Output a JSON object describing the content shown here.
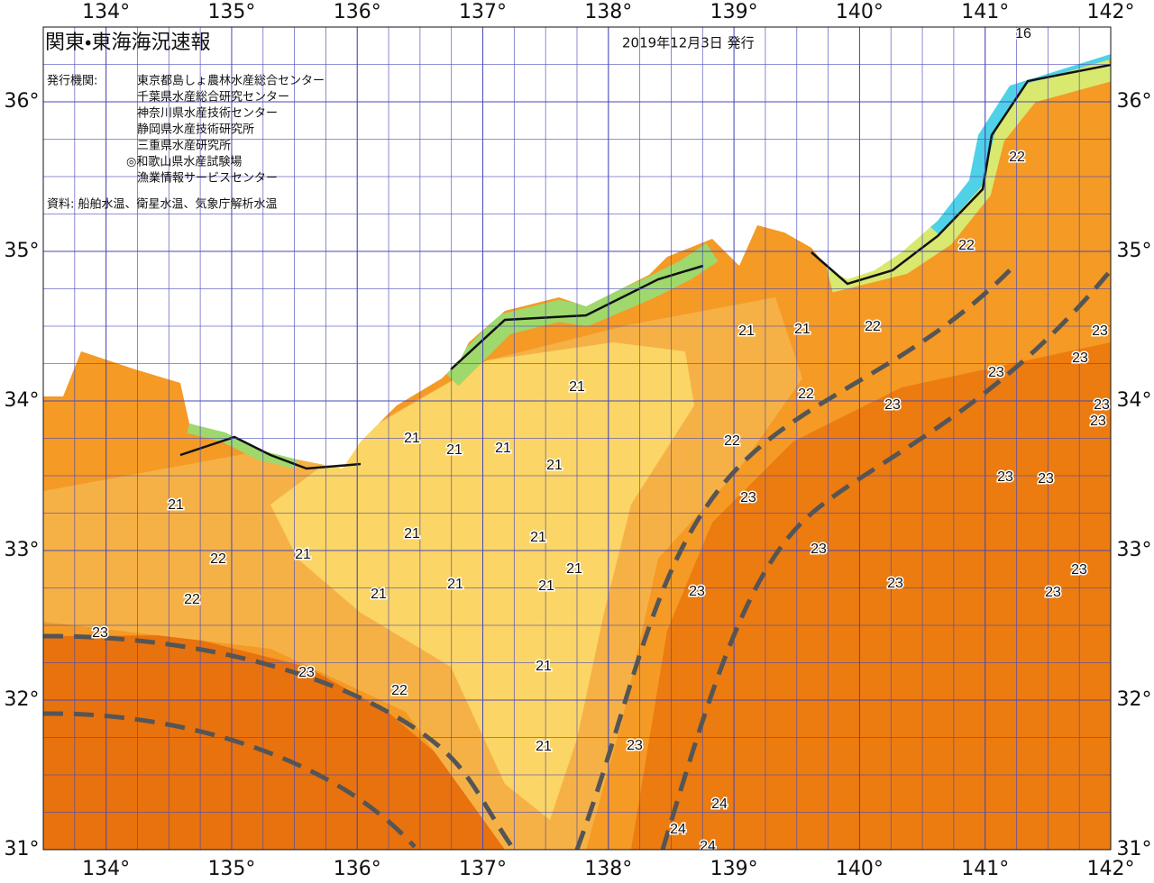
{
  "header": {
    "title": "関東・東海海況速報",
    "date": "2019年12月3日 発行",
    "issuers_label": "発行機関:",
    "issuers": [
      "東京都島しょ農林水産総合センター",
      "千葉県水産総合研究センター",
      "神奈川県水産技術センター",
      "静岡県水産技術研究所",
      "三重県水産研究所",
      "◎和歌山県水産試験場",
      "漁業情報サービスセンター"
    ],
    "sources": "資料: 船舶水温、衛星水温、気象庁解析水温"
  },
  "map": {
    "lon_range": [
      133.5,
      142
    ],
    "lat_range": [
      31,
      36.5
    ],
    "lon_ticks": [
      {
        "value": 134,
        "label": "134°"
      },
      {
        "value": 135,
        "label": "135°"
      },
      {
        "value": 136,
        "label": "136°"
      },
      {
        "value": 137,
        "label": "137°"
      },
      {
        "value": 138,
        "label": "138°"
      },
      {
        "value": 139,
        "label": "139°"
      },
      {
        "value": 140,
        "label": "140°"
      },
      {
        "value": 141,
        "label": "141°"
      },
      {
        "value": 142,
        "label": "142°"
      }
    ],
    "lat_ticks": [
      {
        "value": 31,
        "label": "31°"
      },
      {
        "value": 32,
        "label": "32°"
      },
      {
        "value": 33,
        "label": "33°"
      },
      {
        "value": 34,
        "label": "34°"
      },
      {
        "value": 35,
        "label": "35°"
      },
      {
        "value": 36,
        "label": "36°"
      }
    ],
    "isotherm_labels": [
      16,
      22,
      22,
      21,
      21,
      22,
      23,
      23,
      23,
      21,
      22,
      23,
      23,
      23,
      21,
      21,
      21,
      22,
      21,
      23,
      23,
      21,
      23,
      21,
      21,
      22,
      21,
      23,
      21,
      23,
      21,
      21,
      23,
      23,
      23,
      21,
      22,
      23,
      23,
      21,
      22,
      23,
      21,
      24,
      24,
      24
    ]
  }
}
